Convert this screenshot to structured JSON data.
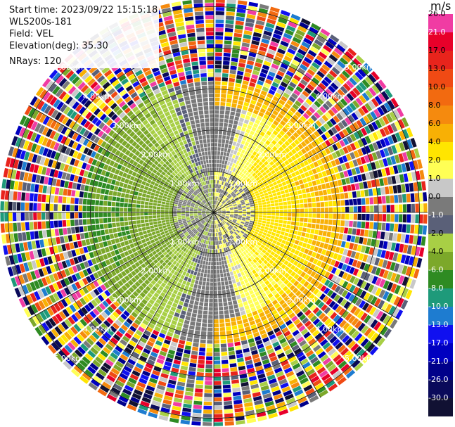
{
  "info": {
    "start_time": "Start time: 2023/09/22 15:15:18",
    "instrument": "WLS200s-181",
    "field": "Field: VEL",
    "elevation": "Elevation(deg): 35.30",
    "nrays": "NRays: 120"
  },
  "colorbar": {
    "unit": "m/s",
    "levels": [
      {
        "label": "26.0",
        "color": "#f03ca3",
        "text_color": "#000000"
      },
      {
        "label": "21.0",
        "color": "#e8002a",
        "text_color": "#ffffff"
      },
      {
        "label": "17.0",
        "color": "#e8241c",
        "text_color": "#000000"
      },
      {
        "label": "13.0",
        "color": "#f04a14",
        "text_color": "#000000"
      },
      {
        "label": "10.0",
        "color": "#f26a10",
        "text_color": "#000000"
      },
      {
        "label": "8.0",
        "color": "#f58a0e",
        "text_color": "#000000"
      },
      {
        "label": "6.0",
        "color": "#f8b005",
        "text_color": "#000000"
      },
      {
        "label": "4.0",
        "color": "#ffe500",
        "text_color": "#000000"
      },
      {
        "label": "2.0",
        "color": "#ffff55",
        "text_color": "#000000"
      },
      {
        "label": "1.0",
        "color": "#c8c8c8",
        "text_color": "#000000"
      },
      {
        "label": "0.0",
        "color": "#7a7a7a",
        "text_color": "#000000"
      },
      {
        "label": "-1.0",
        "color": "#5a6078",
        "text_color": "#ffffff"
      },
      {
        "label": "-2.0",
        "color": "#a8cf45",
        "text_color": "#000000"
      },
      {
        "label": "-4.0",
        "color": "#7ca82a",
        "text_color": "#000000"
      },
      {
        "label": "-6.0",
        "color": "#2e8b22",
        "text_color": "#ffffff"
      },
      {
        "label": "-8.0",
        "color": "#1e9a7a",
        "text_color": "#ffffff"
      },
      {
        "label": "-10.0",
        "color": "#1e7cd0",
        "text_color": "#ffffff"
      },
      {
        "label": "-13.0",
        "color": "#1010f0",
        "text_color": "#ffffff"
      },
      {
        "label": "-17.0",
        "color": "#0000c0",
        "text_color": "#ffffff"
      },
      {
        "label": "-21.0",
        "color": "#00008a",
        "text_color": "#ffffff"
      },
      {
        "label": "-26.0",
        "color": "#0a0a5a",
        "text_color": "#ffffff"
      },
      {
        "label": "-30.0",
        "color": "#111133",
        "text_color": "#ffffff"
      }
    ]
  },
  "chart_data": {
    "type": "heatmap",
    "projection": "polar PPI",
    "field": "VEL",
    "nrays": 120,
    "range_rings_km": [
      1.0,
      2.0,
      3.0,
      4.0,
      5.0
    ],
    "ring_labels": [
      "1.00km",
      "2.00km",
      "3.00km",
      "4.00km",
      "5.00km"
    ],
    "max_range_km": 5.2,
    "clean_zone_km": 3.15,
    "spoke_angles_deg": [
      0,
      30,
      60,
      90,
      120,
      150,
      180,
      210,
      240,
      270,
      300,
      330
    ],
    "approx_velocity_field": [
      {
        "sector": "west",
        "range_km": [
          0,
          3.0
        ],
        "velocity_ms": -5.0
      },
      {
        "sector": "east",
        "range_km": [
          0,
          3.0
        ],
        "velocity_ms": 3.0
      },
      {
        "sector": "center",
        "range_km": [
          0,
          1.2
        ],
        "velocity_ms": 0.0
      },
      {
        "sector": "all",
        "range_km": [
          3.0,
          5.2
        ],
        "velocity_ms": "noise"
      }
    ]
  }
}
